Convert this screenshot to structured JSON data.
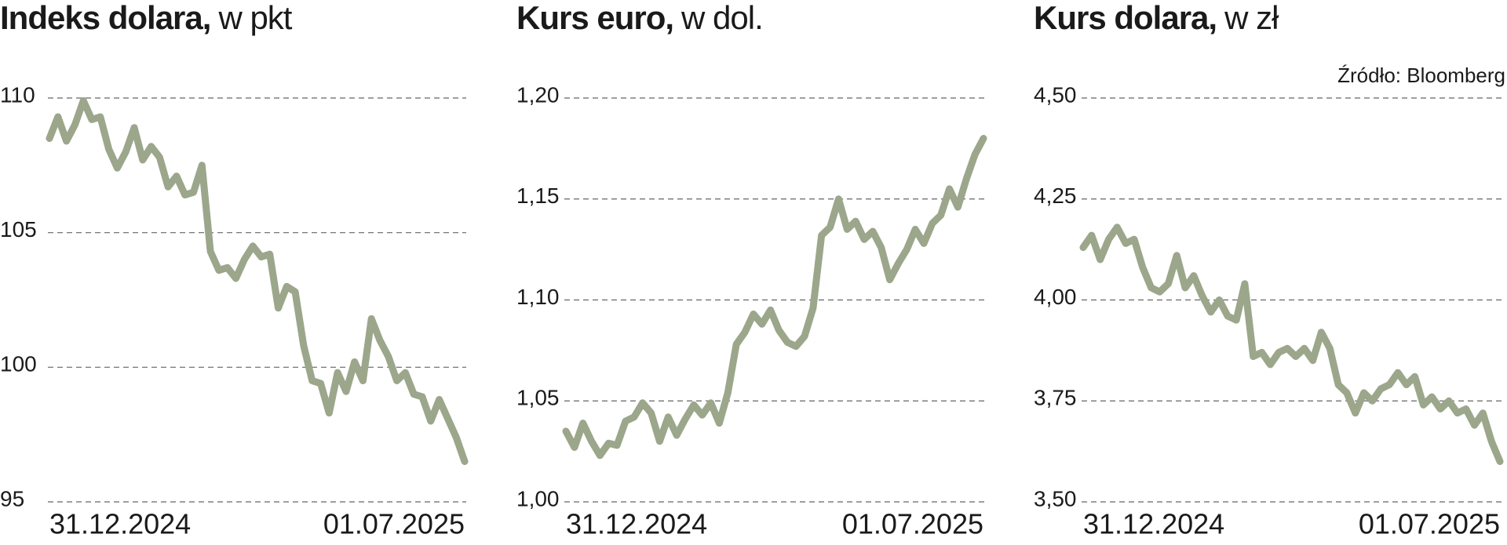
{
  "source": "Źródło: Bloomberg",
  "chart_data": [
    {
      "type": "line",
      "title": "Indeks dolara,",
      "unit": "w pkt",
      "color": "#9ba68b",
      "grid": true,
      "ylim": [
        95,
        110
      ],
      "yticks": [
        95,
        100,
        105,
        110
      ],
      "categories": [
        "31.12.2024",
        null,
        null,
        null,
        null,
        null,
        null,
        null,
        null,
        null,
        null,
        null,
        null,
        null,
        null,
        null,
        null,
        null,
        null,
        null,
        null,
        null,
        null,
        null,
        null,
        null,
        null,
        null,
        null,
        null,
        null,
        null,
        null,
        null,
        null,
        null,
        null,
        null,
        null,
        null,
        null,
        null,
        null,
        null,
        null,
        null,
        null,
        null,
        null,
        "01.07.2025"
      ],
      "values": [
        108.5,
        109.3,
        108.4,
        109,
        109.9,
        109.2,
        109.3,
        108.1,
        107.4,
        108,
        108.9,
        107.7,
        108.2,
        107.8,
        106.7,
        107.1,
        106.4,
        106.5,
        107.5,
        104.3,
        103.6,
        103.7,
        103.3,
        104,
        104.5,
        104.1,
        104.2,
        102.2,
        103,
        102.8,
        100.8,
        99.5,
        99.4,
        98.3,
        99.8,
        99.1,
        100.2,
        99.5,
        101.8,
        101,
        100.4,
        99.5,
        99.8,
        99,
        98.9,
        98,
        98.8,
        98.1,
        97.4,
        96.5
      ]
    },
    {
      "type": "line",
      "title": "Kurs euro,",
      "unit": "w dol.",
      "color": "#9ba68b",
      "grid": true,
      "ylim": [
        1.0,
        1.2
      ],
      "yticks": [
        {
          "value": 1.0,
          "label": "1,00"
        },
        {
          "value": 1.05,
          "label": "1,05"
        },
        {
          "value": 1.1,
          "label": "1,10"
        },
        {
          "value": 1.15,
          "label": "1,15"
        },
        {
          "value": 1.2,
          "label": "1,20"
        }
      ],
      "categories": [
        "31.12.2024",
        null,
        null,
        null,
        null,
        null,
        null,
        null,
        null,
        null,
        null,
        null,
        null,
        null,
        null,
        null,
        null,
        null,
        null,
        null,
        null,
        null,
        null,
        null,
        null,
        null,
        null,
        null,
        null,
        null,
        null,
        null,
        null,
        null,
        null,
        null,
        null,
        null,
        null,
        null,
        null,
        null,
        null,
        null,
        null,
        null,
        null,
        null,
        null,
        "01.07.2025"
      ],
      "values": [
        1.035,
        1.027,
        1.039,
        1.03,
        1.023,
        1.029,
        1.028,
        1.04,
        1.042,
        1.049,
        1.044,
        1.03,
        1.042,
        1.033,
        1.041,
        1.048,
        1.043,
        1.049,
        1.039,
        1.054,
        1.078,
        1.084,
        1.093,
        1.088,
        1.095,
        1.085,
        1.079,
        1.077,
        1.082,
        1.096,
        1.132,
        1.136,
        1.15,
        1.135,
        1.139,
        1.13,
        1.134,
        1.126,
        1.11,
        1.118,
        1.125,
        1.135,
        1.128,
        1.138,
        1.142,
        1.155,
        1.146,
        1.16,
        1.172,
        1.18
      ]
    },
    {
      "type": "line",
      "title": "Kurs dolara,",
      "unit": "w zł",
      "color": "#9ba68b",
      "grid": true,
      "ylim": [
        3.5,
        4.5
      ],
      "yticks": [
        {
          "value": 3.5,
          "label": "3,50"
        },
        {
          "value": 3.75,
          "label": "3,75"
        },
        {
          "value": 4.0,
          "label": "4,00"
        },
        {
          "value": 4.25,
          "label": "4,25"
        },
        {
          "value": 4.5,
          "label": "4,50"
        }
      ],
      "categories": [
        "31.12.2024",
        null,
        null,
        null,
        null,
        null,
        null,
        null,
        null,
        null,
        null,
        null,
        null,
        null,
        null,
        null,
        null,
        null,
        null,
        null,
        null,
        null,
        null,
        null,
        null,
        null,
        null,
        null,
        null,
        null,
        null,
        null,
        null,
        null,
        null,
        null,
        null,
        null,
        null,
        null,
        null,
        null,
        null,
        null,
        null,
        null,
        null,
        null,
        null,
        "01.07.2025"
      ],
      "values": [
        4.13,
        4.16,
        4.1,
        4.15,
        4.18,
        4.14,
        4.15,
        4.08,
        4.03,
        4.02,
        4.04,
        4.11,
        4.03,
        4.06,
        4.01,
        3.97,
        4.0,
        3.96,
        3.95,
        4.04,
        3.86,
        3.87,
        3.84,
        3.87,
        3.88,
        3.86,
        3.88,
        3.85,
        3.92,
        3.88,
        3.79,
        3.77,
        3.72,
        3.77,
        3.75,
        3.78,
        3.79,
        3.82,
        3.79,
        3.81,
        3.74,
        3.76,
        3.73,
        3.75,
        3.72,
        3.73,
        3.69,
        3.72,
        3.65,
        3.6
      ]
    }
  ]
}
